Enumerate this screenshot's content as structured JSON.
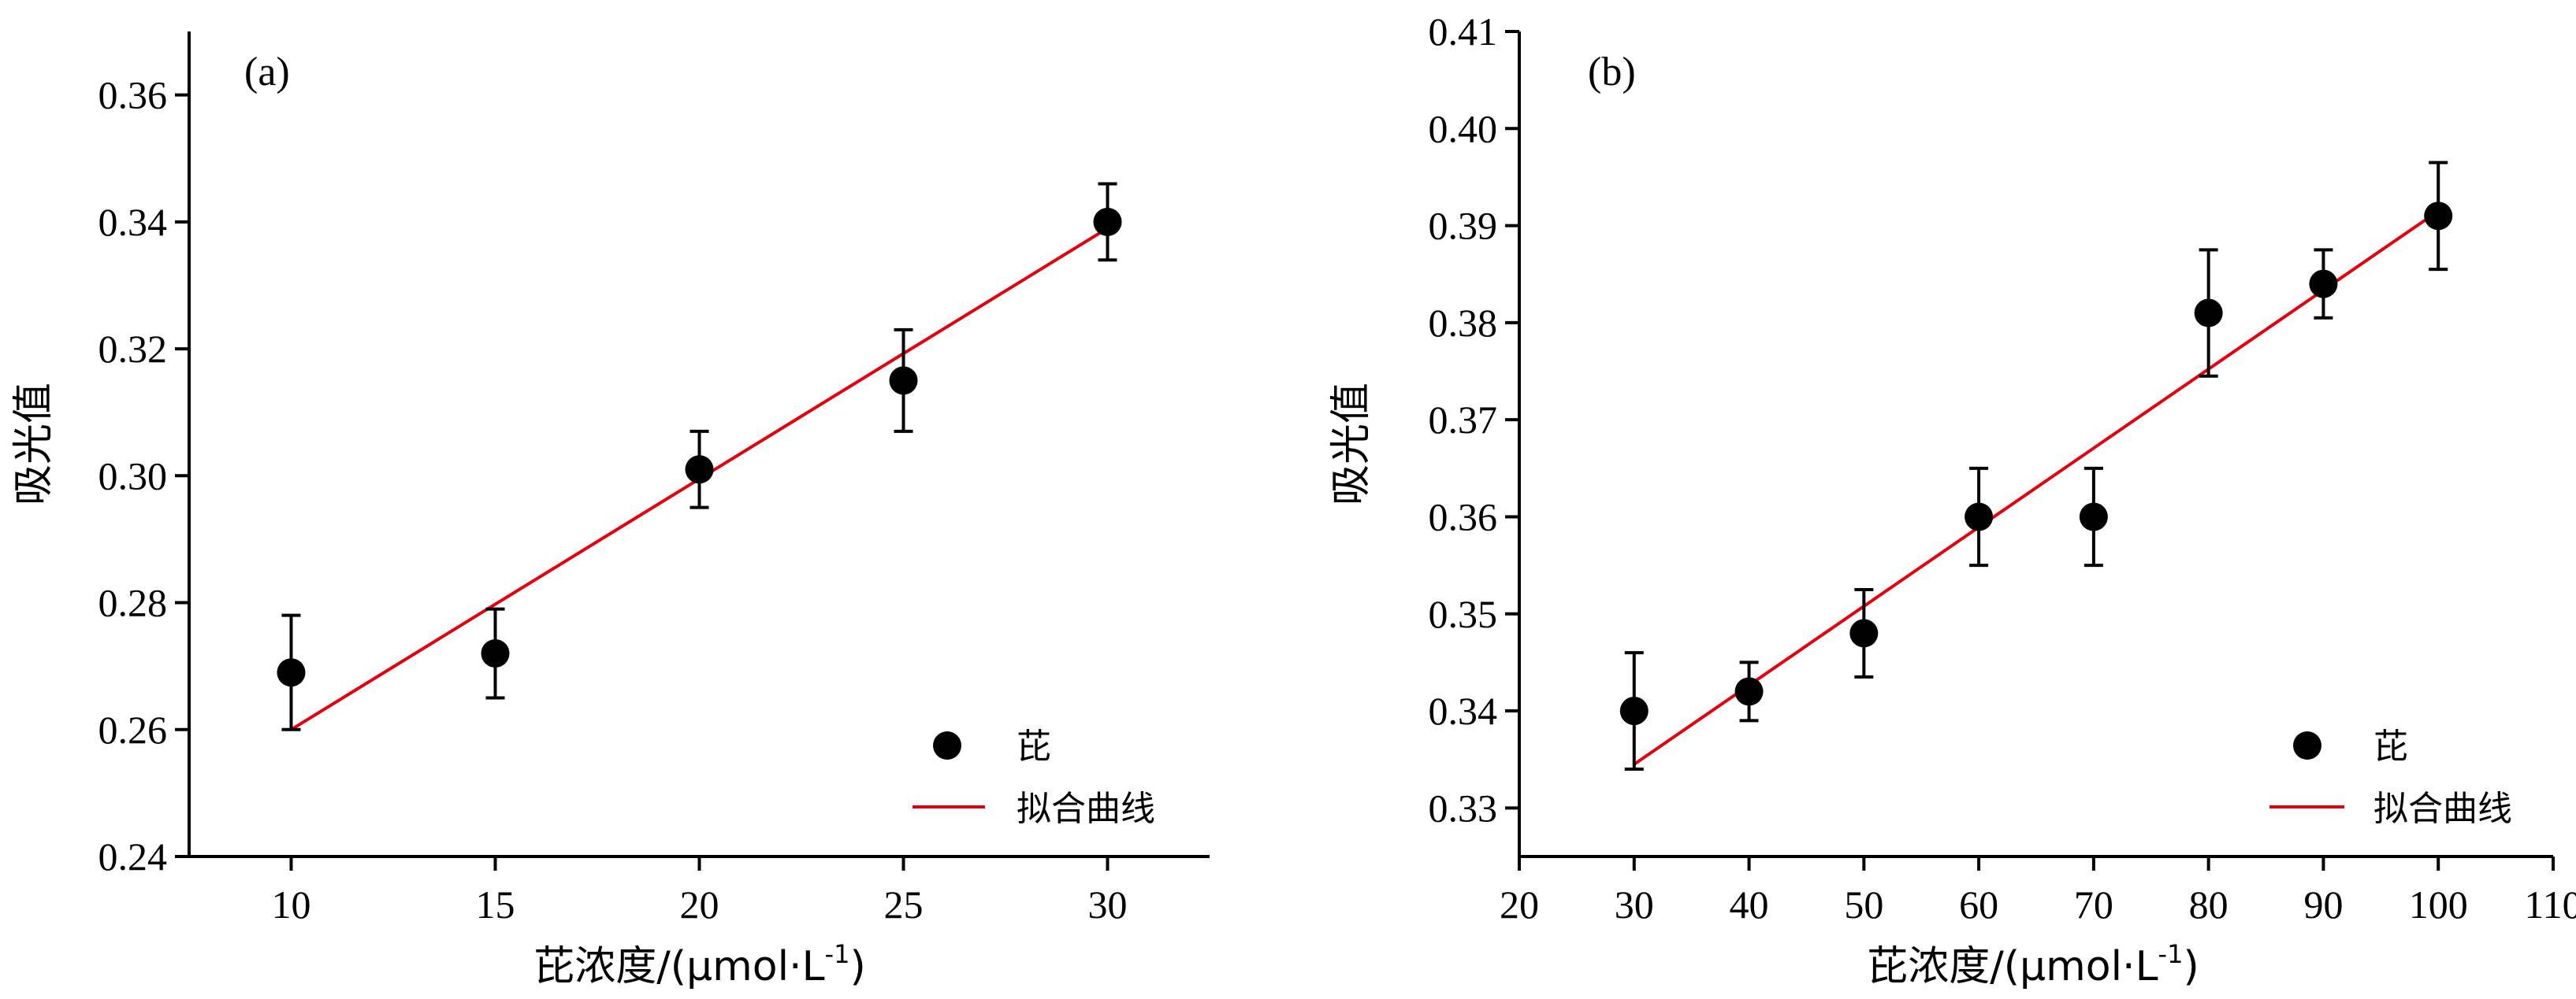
{
  "chart_data": [
    {
      "type": "scatter",
      "panel_label": "(a)",
      "xlabel_prefix": "芘浓度/(μmol·L",
      "xlabel_sup": "-1",
      "xlabel_suffix": ")",
      "ylabel": "吸光值",
      "xlim": [
        7.5,
        32.5
      ],
      "ylim": [
        0.24,
        0.37
      ],
      "xticks": [
        10,
        15,
        20,
        25,
        30
      ],
      "xtick_labels": [
        "10",
        "15",
        "20",
        "25",
        "30"
      ],
      "yticks": [
        0.24,
        0.26,
        0.28,
        0.3,
        0.32,
        0.34,
        0.36
      ],
      "ytick_labels": [
        "0.24",
        "0.26",
        "0.28",
        "0.30",
        "0.32",
        "0.34",
        "0.36"
      ],
      "series": [
        {
          "name": "芘",
          "x": [
            10,
            15,
            20,
            25,
            30
          ],
          "y": [
            0.269,
            0.272,
            0.301,
            0.315,
            0.34
          ],
          "err_low": [
            0.009,
            0.007,
            0.006,
            0.008,
            0.006
          ],
          "err_high": [
            0.009,
            0.007,
            0.006,
            0.008,
            0.006
          ],
          "color": "#000000"
        }
      ],
      "fit": {
        "name": "拟合曲线",
        "x": [
          10,
          30
        ],
        "y": [
          0.26,
          0.339
        ],
        "color": "#e3000f"
      },
      "legend_position": "bottom-right",
      "grid": false
    },
    {
      "type": "scatter",
      "panel_label": "(b)",
      "xlabel_prefix": "芘浓度/(μmol·L",
      "xlabel_sup": "-1",
      "xlabel_suffix": ")",
      "ylabel": "吸光值",
      "xlim": [
        20,
        110
      ],
      "ylim": [
        0.325,
        0.41
      ],
      "xticks": [
        20,
        30,
        40,
        50,
        60,
        70,
        80,
        90,
        100,
        110
      ],
      "xtick_labels": [
        "20",
        "30",
        "40",
        "50",
        "60",
        "70",
        "80",
        "90",
        "100",
        "110"
      ],
      "yticks": [
        0.33,
        0.34,
        0.35,
        0.36,
        0.37,
        0.38,
        0.39,
        0.4,
        0.41
      ],
      "ytick_labels": [
        "0.33",
        "0.34",
        "0.35",
        "0.36",
        "0.37",
        "0.38",
        "0.39",
        "0.40",
        "0.41"
      ],
      "series": [
        {
          "name": "芘",
          "x": [
            30,
            40,
            50,
            60,
            70,
            80,
            90,
            100
          ],
          "y": [
            0.34,
            0.342,
            0.348,
            0.36,
            0.36,
            0.381,
            0.384,
            0.391
          ],
          "err_low": [
            0.006,
            0.003,
            0.0045,
            0.005,
            0.005,
            0.0065,
            0.0035,
            0.0055
          ],
          "err_high": [
            0.006,
            0.003,
            0.0045,
            0.005,
            0.005,
            0.0065,
            0.0035,
            0.0055
          ],
          "color": "#000000"
        }
      ],
      "fit": {
        "name": "拟合曲线",
        "x": [
          30,
          100
        ],
        "y": [
          0.3345,
          0.3915
        ],
        "color": "#e3000f"
      },
      "legend_position": "bottom-right",
      "grid": false
    }
  ]
}
